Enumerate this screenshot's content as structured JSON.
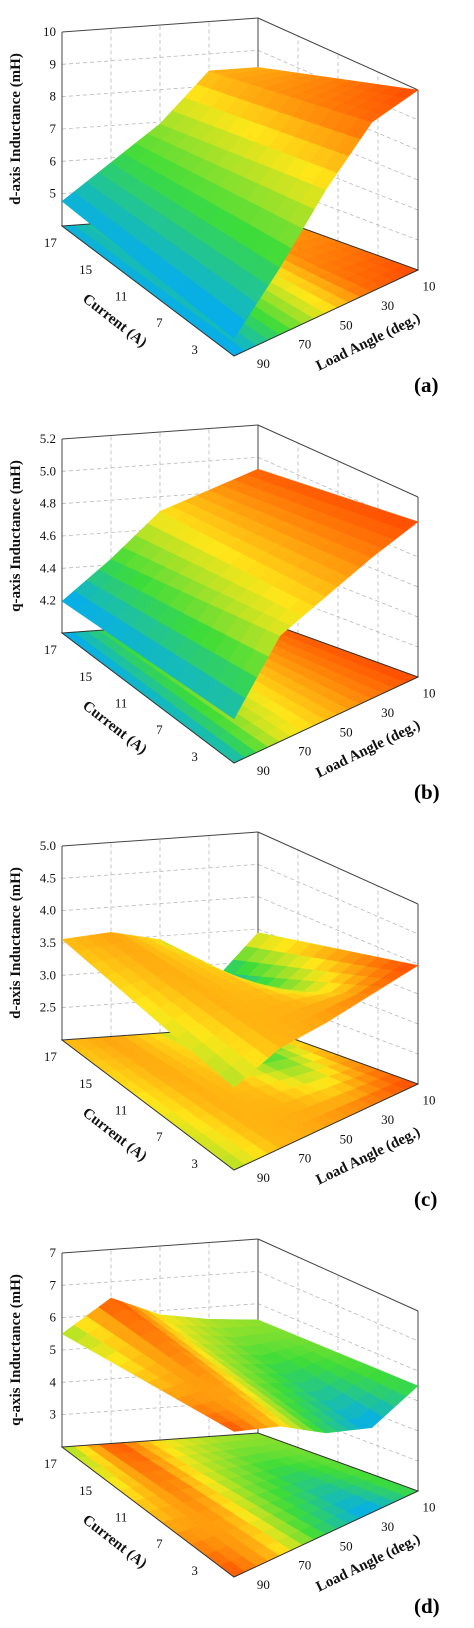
{
  "colors": {
    "low": "#00a8ff",
    "mid": "#3ddc3a",
    "yellow": "#ffe619",
    "high": "#ff4a00"
  },
  "chart_data": [
    {
      "type": "surface",
      "panel_label": "(a)",
      "zlabel": "d-axis Inductance (mH)",
      "xlabel": "Load Angle (deg.)",
      "ylabel": "Current (A)",
      "load_angle_ticks": [
        "10",
        "30",
        "50",
        "70",
        "90"
      ],
      "current_ticks": [
        "17",
        "15",
        "11",
        "7",
        "3"
      ],
      "z_ticks": [
        "10",
        "9",
        "8",
        "7",
        "6",
        "5"
      ],
      "zlim": [
        4.5,
        10
      ],
      "projection_colored": true,
      "surface": {
        "load_angle": [
          90,
          70,
          50,
          30,
          10
        ],
        "current": [
          3,
          17
        ],
        "z": [
          [
            5.0,
            5.2
          ],
          [
            6.4,
            6.2
          ],
          [
            8.0,
            7.2
          ],
          [
            9.3,
            8.6
          ],
          [
            9.6,
            8.6
          ]
        ]
      }
    },
    {
      "type": "surface",
      "panel_label": "(b)",
      "zlabel": "q-axis Inductance (mH)",
      "xlabel": "Load Angle (deg.)",
      "ylabel": "Current (A)",
      "load_angle_ticks": [
        "10",
        "30",
        "50",
        "70",
        "90"
      ],
      "current_ticks": [
        "17",
        "15",
        "11",
        "7",
        "3"
      ],
      "z_ticks": [
        "5.2",
        "5.0",
        "4.8",
        "4.6",
        "4.4",
        "4.2"
      ],
      "zlim": [
        4.1,
        5.2
      ],
      "projection_colored": true,
      "surface": {
        "load_angle": [
          90,
          70,
          50,
          30,
          10
        ],
        "current": [
          3,
          17
        ],
        "z": [
          [
            4.35,
            4.28
          ],
          [
            4.7,
            4.5
          ],
          [
            4.8,
            4.75
          ],
          [
            4.9,
            4.85
          ],
          [
            4.98,
            4.95
          ]
        ]
      }
    },
    {
      "type": "surface",
      "panel_label": "(c)",
      "zlabel": "d-axis Inductance (mH)",
      "xlabel": "Load Angle (deg.)",
      "ylabel": "Current (A)",
      "load_angle_ticks": [
        "10",
        "30",
        "50",
        "70",
        "90"
      ],
      "current_ticks": [
        "17",
        "15",
        "11",
        "7",
        "3"
      ],
      "z_ticks": [
        "5.0",
        "4.5",
        "4.0",
        "3.5",
        "3.0",
        "2.5"
      ],
      "zlim": [
        2.3,
        5.0
      ],
      "projection_colored": true,
      "surface": {
        "load_angle": [
          90,
          70,
          50,
          30,
          10
        ],
        "current": [
          3,
          17
        ],
        "z": [
          [
            3.45,
            3.7
          ],
          [
            3.7,
            3.75
          ],
          [
            3.75,
            3.6
          ],
          [
            3.85,
            2.9
          ],
          [
            3.95,
            3.6
          ]
        ]
      }
    },
    {
      "type": "surface",
      "panel_label": "(d)",
      "zlabel": "q-axis Inductance (mH)",
      "xlabel": "Load Angle (deg.)",
      "ylabel": "Current (A)",
      "load_angle_ticks": [
        "10",
        "30",
        "50",
        "70",
        "90"
      ],
      "current_ticks": [
        "17",
        "15",
        "11",
        "7",
        "3"
      ],
      "z_ticks": [
        "7",
        "7",
        "6",
        "5",
        "4",
        "3"
      ],
      "zlim": [
        2.5,
        7.3
      ],
      "projection_colored": true,
      "surface": {
        "load_angle": [
          90,
          70,
          50,
          30,
          10
        ],
        "current": [
          3,
          17
        ],
        "z": [
          [
            6.1,
            5.3
          ],
          [
            5.7,
            6.1
          ],
          [
            5.0,
            5.6
          ],
          [
            4.6,
            5.4
          ],
          [
            5.1,
            5.3
          ]
        ]
      }
    }
  ]
}
